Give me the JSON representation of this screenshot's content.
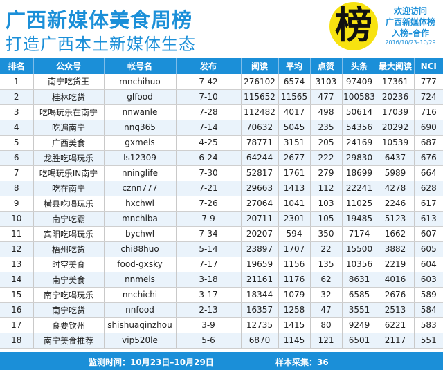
{
  "header": {
    "title": "广西新媒体美食周榜",
    "subtitle": "打造广西本土新媒体生态",
    "logo_char": "榜",
    "promo_line1": "欢迎访问",
    "promo_line2": "广西新媒体榜",
    "promo_line3": "入榜–合作",
    "promo_date": "2016/10/23–10/29"
  },
  "colors": {
    "brand_blue": "#1b8fd8",
    "logo_yellow": "#f7e210",
    "row_alt": "#eaf3fb"
  },
  "table": {
    "columns": [
      "排名",
      "公众号",
      "帐号名",
      "发布",
      "阅读",
      "平均",
      "点赞",
      "头条",
      "最大阅读",
      "NCI"
    ],
    "rows": [
      [
        "1",
        "南宁吃货王",
        "mnchihuo",
        "7-42",
        "276102",
        "6574",
        "3103",
        "97409",
        "17361",
        "777"
      ],
      [
        "2",
        "桂林吃货",
        "glfood",
        "7-10",
        "115652",
        "11565",
        "477",
        "100583",
        "20236",
        "724"
      ],
      [
        "3",
        "吃喝玩乐在南宁",
        "nnwanle",
        "7-28",
        "112482",
        "4017",
        "498",
        "50614",
        "17039",
        "716"
      ],
      [
        "4",
        "吃遍南宁",
        "nnq365",
        "7-14",
        "70632",
        "5045",
        "235",
        "54356",
        "20292",
        "690"
      ],
      [
        "5",
        "广西美食",
        "gxmeis",
        "4-25",
        "78771",
        "3151",
        "205",
        "24169",
        "10539",
        "687"
      ],
      [
        "6",
        "龙胜吃喝玩乐",
        "ls12309",
        "6-24",
        "64244",
        "2677",
        "222",
        "29830",
        "6437",
        "676"
      ],
      [
        "7",
        "吃喝玩乐IN南宁",
        "nninglife",
        "7-30",
        "52817",
        "1761",
        "279",
        "18699",
        "5989",
        "664"
      ],
      [
        "8",
        "吃在南宁",
        "cznn777",
        "7-21",
        "29663",
        "1413",
        "112",
        "22241",
        "4278",
        "628"
      ],
      [
        "9",
        "横县吃喝玩乐",
        "hxchwl",
        "7-26",
        "27064",
        "1041",
        "103",
        "11025",
        "2246",
        "617"
      ],
      [
        "10",
        "南宁吃霸",
        "mnchiba",
        "7-9",
        "20711",
        "2301",
        "105",
        "19485",
        "5123",
        "613"
      ],
      [
        "11",
        "宾阳吃喝玩乐",
        "bychwl",
        "7-34",
        "20207",
        "594",
        "350",
        "7174",
        "1662",
        "607"
      ],
      [
        "12",
        "梧州吃货",
        "chi88huo",
        "5-14",
        "23897",
        "1707",
        "22",
        "15500",
        "3882",
        "605"
      ],
      [
        "13",
        "时空美食",
        "food-gxsky",
        "7-17",
        "19659",
        "1156",
        "135",
        "10356",
        "2219",
        "604"
      ],
      [
        "14",
        "南宁美食",
        "nnmeis",
        "3-18",
        "21161",
        "1176",
        "62",
        "8631",
        "4016",
        "603"
      ],
      [
        "15",
        "南宁吃喝玩乐",
        "nnchichi",
        "3-17",
        "18344",
        "1079",
        "32",
        "6585",
        "2676",
        "589"
      ],
      [
        "16",
        "南宁吃货",
        "nnfood",
        "2-13",
        "16357",
        "1258",
        "47",
        "3551",
        "2513",
        "584"
      ],
      [
        "17",
        "食要钦州",
        "shishuaqinzhou",
        "3-9",
        "12735",
        "1415",
        "80",
        "9249",
        "6221",
        "583"
      ],
      [
        "18",
        "南宁美食推荐",
        "vip520le",
        "5-6",
        "6870",
        "1145",
        "121",
        "6501",
        "2117",
        "551"
      ]
    ]
  },
  "footer": {
    "period": "监测时间：10月23日–10月29日",
    "sample": "样本采集：36"
  }
}
